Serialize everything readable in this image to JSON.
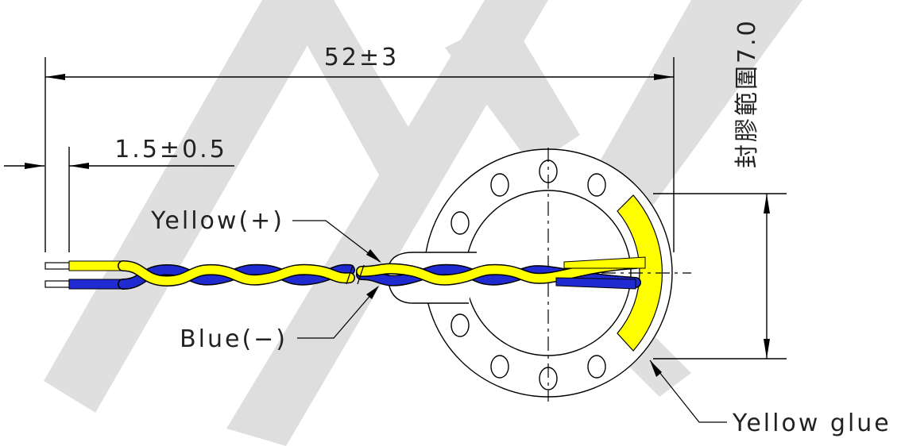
{
  "dimensions": {
    "overall_length": "52±3",
    "strip_length": "1.5±0.5",
    "glue_range": "封膠範圍7.0"
  },
  "callouts": {
    "yellow_wire": "Yellow(+)",
    "blue_wire": "Blue(−)",
    "yellow_glue": "Yellow glue"
  },
  "colors": {
    "yellow_wire": "#ffff00",
    "blue_wire": "#1f2bd1",
    "glue": "#ffff00",
    "watermark": "#d9d9d9"
  },
  "watermark": {
    "icon": "letter-a-watermark-icon"
  }
}
